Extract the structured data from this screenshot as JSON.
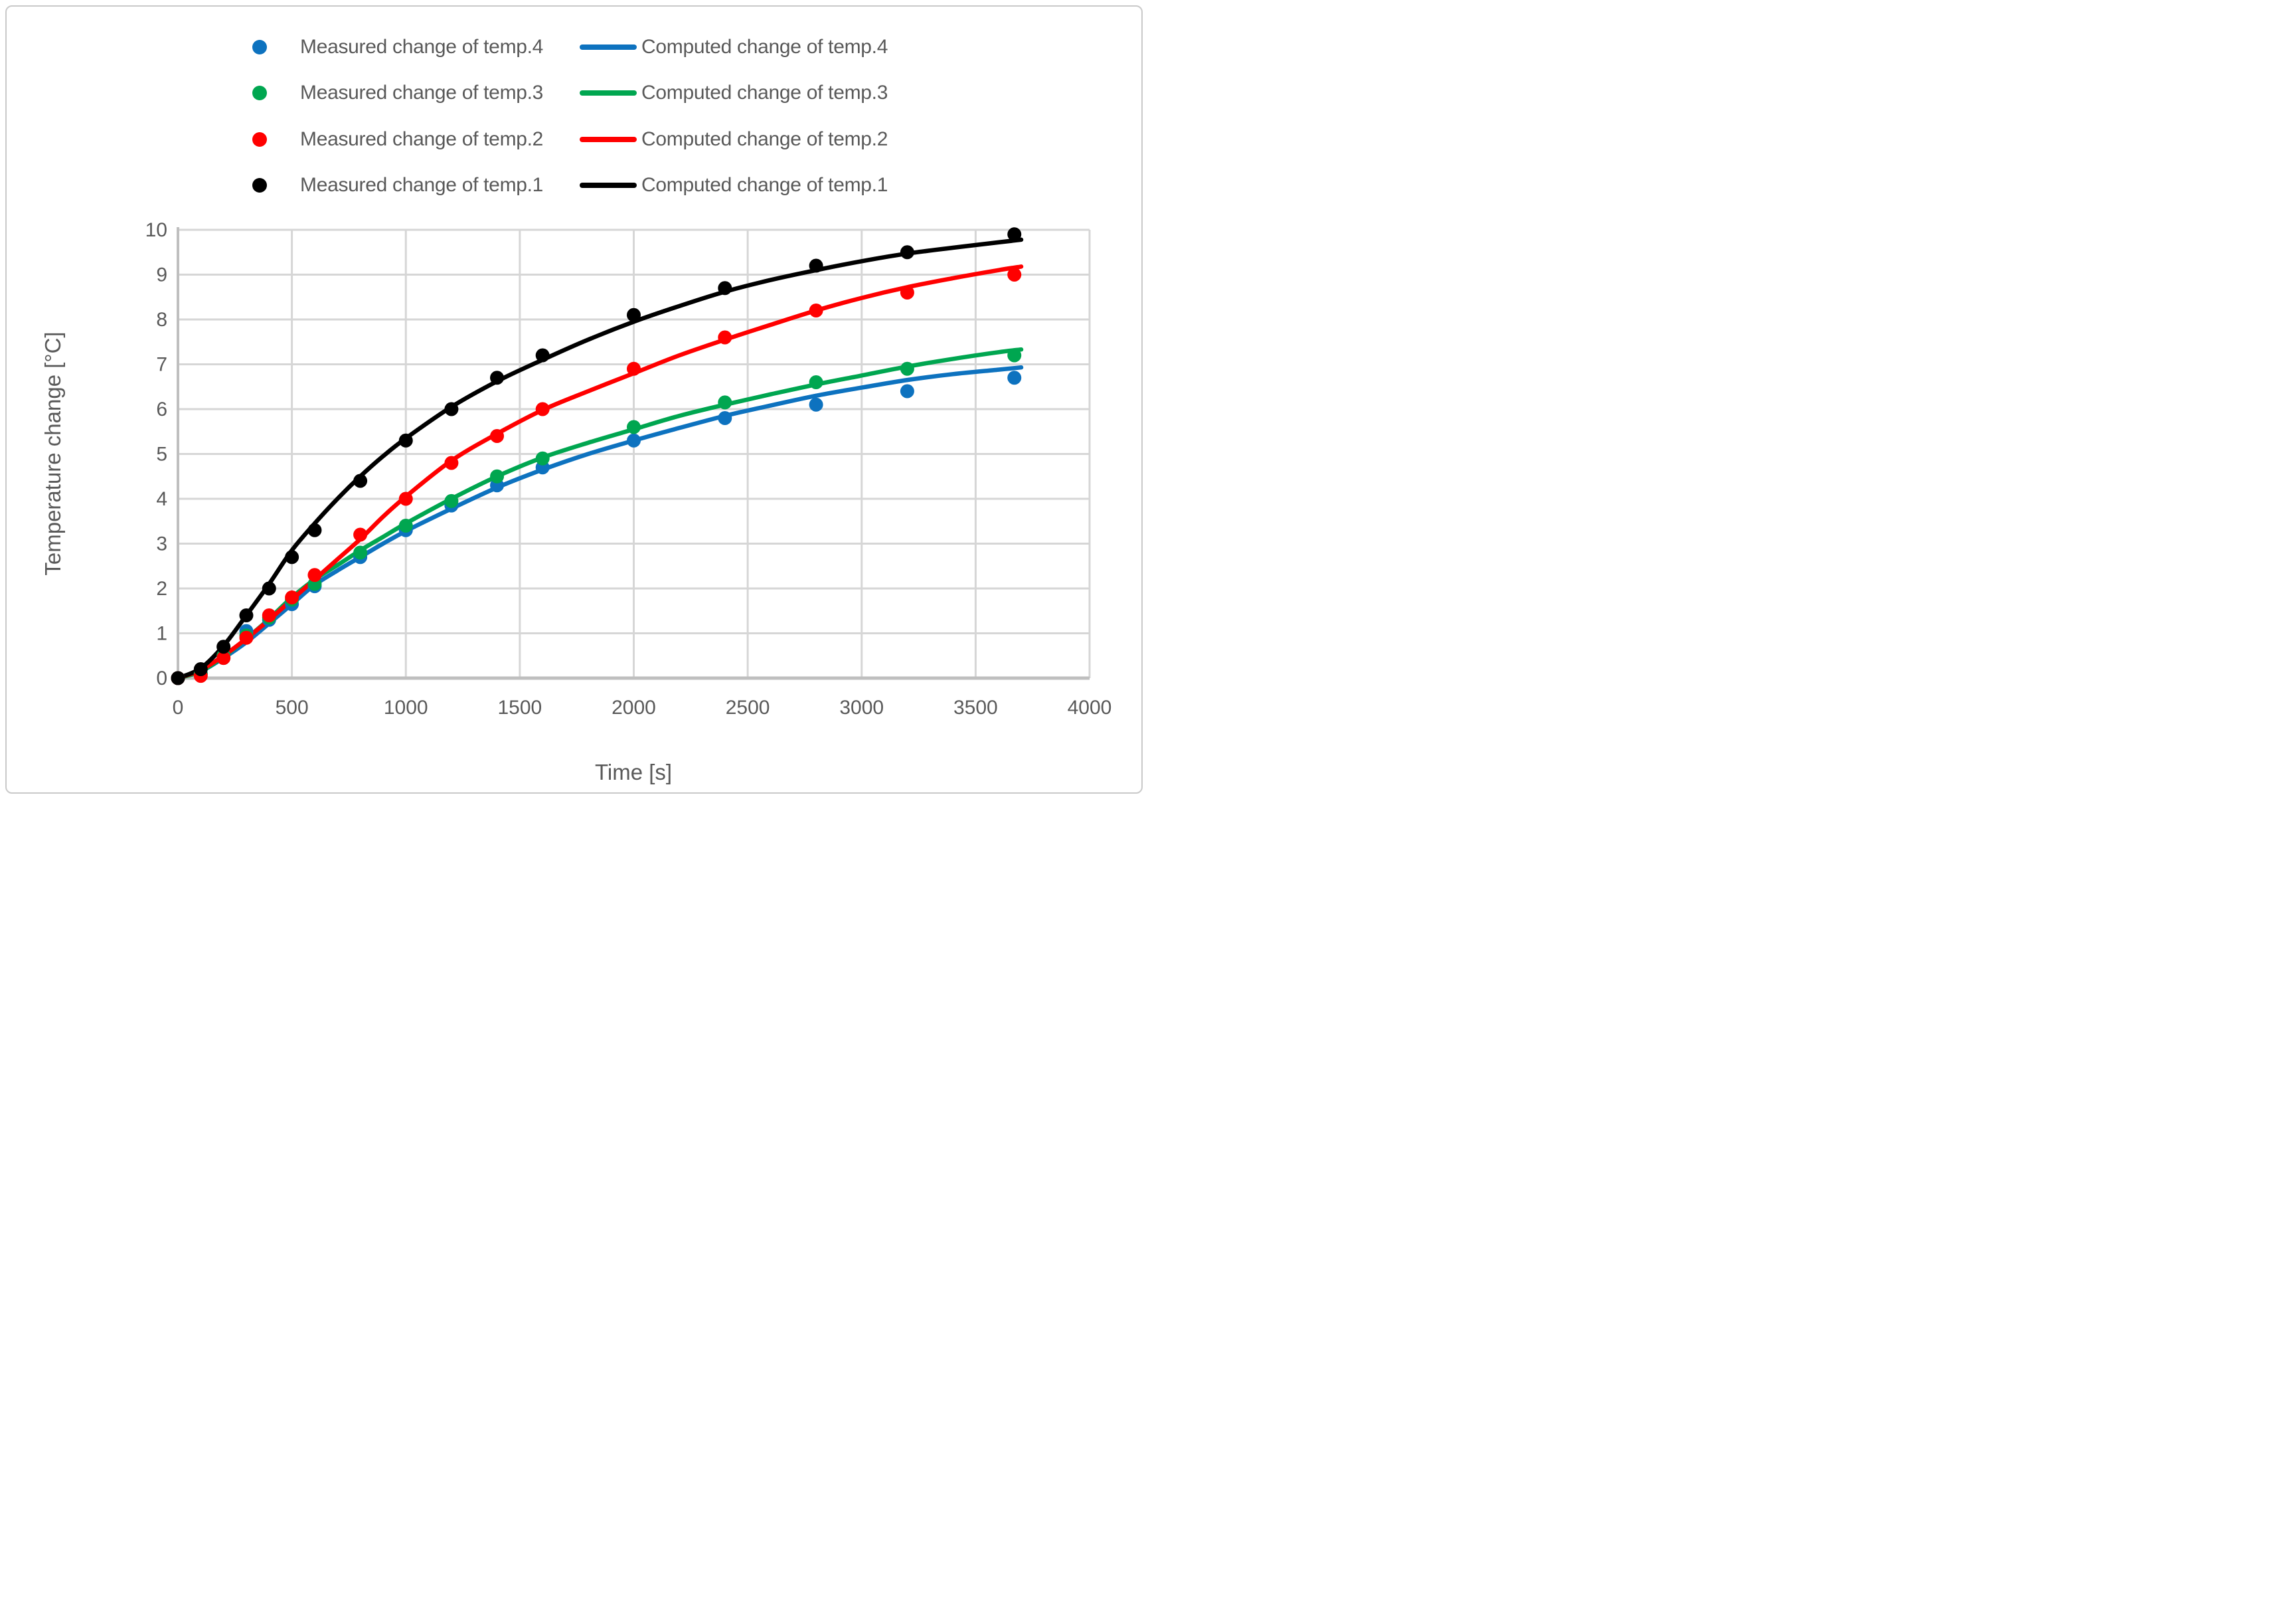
{
  "figure": {
    "background": "#ffffff",
    "border_color": "#c9c9c9",
    "grid_color": "#d6d6d6",
    "axis_line_color": "#bfbfbf",
    "text_color": "#595959"
  },
  "legend": {
    "rows": [
      {
        "series_color": "#0d72bf",
        "measured_label": "Measured change of temp.4",
        "computed_label": "Computed change of temp.4"
      },
      {
        "series_color": "#00a650",
        "measured_label": "Measured change of temp.3",
        "computed_label": "Computed change of temp.3"
      },
      {
        "series_color": "#ff0000",
        "measured_label": "Measured change of temp.2",
        "computed_label": "Computed change of temp.2"
      },
      {
        "series_color": "#000000",
        "measured_label": "Measured change of temp.1",
        "computed_label": "Computed change of temp.1"
      }
    ]
  },
  "chart_data": {
    "type": "scatter",
    "title": "",
    "xlabel": "Time [s]",
    "ylabel": "Temperature change [°C]",
    "xlim": [
      0,
      4000
    ],
    "ylim": [
      0,
      10
    ],
    "xticks": [
      0,
      500,
      1000,
      1500,
      2000,
      2500,
      3000,
      3500,
      4000
    ],
    "yticks": [
      0,
      1,
      2,
      3,
      4,
      5,
      6,
      7,
      8,
      9,
      10
    ],
    "grid": true,
    "legend_position": "top-center",
    "series": [
      {
        "name": "Computed change of temp.4",
        "kind": "line",
        "color": "#0d72bf",
        "x": [
          0,
          100,
          200,
          300,
          400,
          500,
          600,
          700,
          800,
          900,
          1000,
          1200,
          1400,
          1600,
          1800,
          2000,
          2200,
          2400,
          2600,
          2800,
          3000,
          3200,
          3400,
          3600,
          3700
        ],
        "y": [
          0,
          0.15,
          0.45,
          0.8,
          1.22,
          1.65,
          2.08,
          2.4,
          2.7,
          3.0,
          3.28,
          3.78,
          4.25,
          4.65,
          5.0,
          5.3,
          5.58,
          5.85,
          6.08,
          6.3,
          6.48,
          6.65,
          6.78,
          6.88,
          6.93
        ]
      },
      {
        "name": "Computed change of temp.3",
        "kind": "line",
        "color": "#00a650",
        "x": [
          0,
          100,
          200,
          300,
          400,
          500,
          600,
          700,
          800,
          900,
          1000,
          1200,
          1400,
          1600,
          1800,
          2000,
          2200,
          2400,
          2600,
          2800,
          3000,
          3200,
          3400,
          3600,
          3700
        ],
        "y": [
          0,
          0.15,
          0.48,
          0.88,
          1.32,
          1.8,
          2.2,
          2.52,
          2.85,
          3.15,
          3.45,
          4.0,
          4.5,
          4.92,
          5.25,
          5.55,
          5.85,
          6.1,
          6.33,
          6.55,
          6.75,
          6.95,
          7.12,
          7.27,
          7.33
        ]
      },
      {
        "name": "Computed change of temp.2",
        "kind": "line",
        "color": "#ff0000",
        "x": [
          0,
          100,
          200,
          300,
          400,
          500,
          600,
          700,
          800,
          900,
          1000,
          1200,
          1400,
          1600,
          1800,
          2000,
          2200,
          2400,
          2600,
          2800,
          3000,
          3200,
          3400,
          3600,
          3700
        ],
        "y": [
          0,
          0.18,
          0.5,
          0.88,
          1.3,
          1.75,
          2.2,
          2.65,
          3.1,
          3.6,
          4.05,
          4.85,
          5.45,
          5.98,
          6.4,
          6.8,
          7.2,
          7.55,
          7.88,
          8.2,
          8.48,
          8.72,
          8.92,
          9.1,
          9.18
        ]
      },
      {
        "name": "Computed change of temp.1",
        "kind": "line",
        "color": "#000000",
        "x": [
          0,
          100,
          200,
          300,
          400,
          500,
          600,
          700,
          800,
          900,
          1000,
          1200,
          1400,
          1600,
          1800,
          2000,
          2200,
          2400,
          2600,
          2800,
          3000,
          3200,
          3400,
          3600,
          3700
        ],
        "y": [
          0,
          0.22,
          0.72,
          1.4,
          2.1,
          2.85,
          3.45,
          4.0,
          4.5,
          4.95,
          5.35,
          6.05,
          6.62,
          7.1,
          7.55,
          7.95,
          8.3,
          8.62,
          8.88,
          9.1,
          9.3,
          9.47,
          9.6,
          9.72,
          9.78
        ]
      },
      {
        "name": "Measured change of temp.4",
        "kind": "scatter",
        "color": "#0d72bf",
        "x": [
          0,
          100,
          200,
          300,
          400,
          500,
          600,
          800,
          1000,
          1200,
          1400,
          1600,
          2000,
          2400,
          2800,
          3200,
          3670
        ],
        "y": [
          0,
          0.1,
          0.45,
          1.05,
          1.3,
          1.65,
          2.05,
          2.7,
          3.3,
          3.85,
          4.3,
          4.7,
          5.3,
          5.8,
          6.1,
          6.4,
          6.7
        ]
      },
      {
        "name": "Measured change of temp.3",
        "kind": "scatter",
        "color": "#00a650",
        "x": [
          0,
          100,
          200,
          300,
          400,
          500,
          600,
          800,
          1000,
          1200,
          1400,
          1600,
          2000,
          2400,
          2800,
          3200,
          3670
        ],
        "y": [
          0,
          0.1,
          0.5,
          0.95,
          1.35,
          1.75,
          2.1,
          2.8,
          3.4,
          3.95,
          4.5,
          4.9,
          5.6,
          6.15,
          6.6,
          6.9,
          7.2
        ]
      },
      {
        "name": "Measured change of temp.2",
        "kind": "scatter",
        "color": "#ff0000",
        "x": [
          0,
          100,
          200,
          300,
          400,
          500,
          600,
          800,
          1000,
          1200,
          1400,
          1600,
          2000,
          2400,
          2800,
          3200,
          3670
        ],
        "y": [
          0,
          0.05,
          0.45,
          0.9,
          1.4,
          1.8,
          2.3,
          3.2,
          4.0,
          4.8,
          5.4,
          6.0,
          6.9,
          7.6,
          8.2,
          8.6,
          9.0
        ]
      },
      {
        "name": "Measured change of temp.1",
        "kind": "scatter",
        "color": "#000000",
        "x": [
          0,
          100,
          200,
          300,
          400,
          500,
          600,
          800,
          1000,
          1200,
          1400,
          1600,
          2000,
          2400,
          2800,
          3200,
          3670
        ],
        "y": [
          0,
          0.2,
          0.7,
          1.4,
          2.0,
          2.7,
          3.3,
          4.4,
          5.3,
          6.0,
          6.7,
          7.2,
          8.1,
          8.7,
          9.2,
          9.5,
          9.9
        ]
      }
    ]
  }
}
